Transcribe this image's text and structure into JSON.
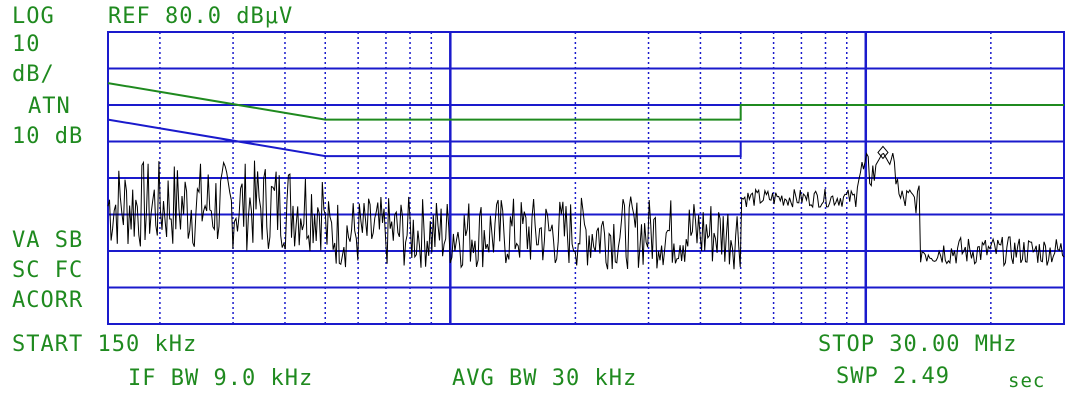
{
  "header": {
    "scale": "LOG",
    "ref_level": "REF 80.0 dBμV"
  },
  "left_panel": {
    "scale_value": "10",
    "scale_unit": "dB/",
    "atn_label": "ATN",
    "atn_value": "10 dB",
    "va_sb": "VA SB",
    "sc_fc": "SC FC",
    "acorr": "ACORR"
  },
  "footer": {
    "start": "START 150 kHz",
    "stop": "STOP 30.00 MHz",
    "if_bw": "IF BW 9.0 kHz",
    "avg_bw": "AVG BW 30 kHz",
    "sweep": "SWP 2.49",
    "sweep_unit": "sec"
  },
  "colors": {
    "text": "#1f8a1f",
    "grid": "#1a1acc",
    "trace": "#000000",
    "limit_upper": "#1f8a1f",
    "limit_lower": "#1a1acc"
  },
  "chart_data": {
    "type": "line",
    "x_scale": "log",
    "x_range_mhz": [
      0.15,
      30.0
    ],
    "ref_level_dbuv": 80.0,
    "y_scale_db_per_div": 10,
    "y_divisions": 8,
    "y_range_dbuv": [
      0,
      80
    ],
    "grid": true,
    "series": [
      {
        "key": "limit_qp",
        "color": "#1f8a1f",
        "x_mhz": [
          0.15,
          0.5,
          0.5,
          5.0,
          5.0,
          30.0
        ],
        "y_dbuv": [
          66,
          56,
          56,
          56,
          60,
          60
        ]
      },
      {
        "key": "limit_avg",
        "color": "#1a1acc",
        "x_mhz": [
          0.15,
          0.5,
          0.5,
          5.0,
          5.0,
          30.0
        ],
        "y_dbuv": [
          56,
          46,
          46,
          46,
          50,
          50
        ]
      },
      {
        "key": "measurement",
        "color": "#000000",
        "segments": [
          {
            "x_mhz": [
              0.15,
              0.5
            ],
            "y_dbuv": [
              20,
              45
            ]
          },
          {
            "x_mhz": [
              0.5,
              5.0
            ],
            "y_dbuv": [
              15,
              35
            ]
          },
          {
            "x_mhz": [
              5.0,
              9.5
            ],
            "y_dbuv": [
              32,
              37
            ]
          },
          {
            "x_mhz": [
              9.5,
              12.0
            ],
            "y_dbuv": [
              36,
              47
            ]
          },
          {
            "x_mhz": [
              12.0,
              13.5
            ],
            "y_dbuv": [
              30,
              38
            ]
          },
          {
            "x_mhz": [
              13.5,
              30.0
            ],
            "y_dbuv": [
              16,
              24
            ]
          }
        ],
        "peak_mhz": 11.0,
        "peak_dbuv": 47
      }
    ]
  }
}
